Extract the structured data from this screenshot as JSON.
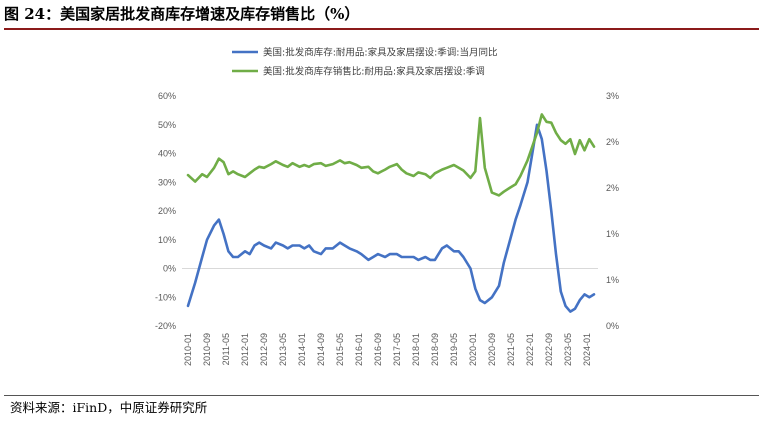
{
  "title": "图 24：美国家居批发商库存增速及库存销售比（%）",
  "source": "资料来源：iFinD，中原证券研究所",
  "chart_data": {
    "type": "line",
    "title": "图 24：美国家居批发商库存增速及库存销售比（%）",
    "legend_position": "top-center",
    "grid": false,
    "x_tick_labels": [
      "2010-01",
      "2010-09",
      "2011-05",
      "2012-01",
      "2012-09",
      "2013-05",
      "2014-01",
      "2014-09",
      "2015-05",
      "2016-01",
      "2016-09",
      "2017-05",
      "2018-01",
      "2018-09",
      "2019-05",
      "2020-01",
      "2020-09",
      "2021-05",
      "2022-01",
      "2022-09",
      "2023-05",
      "2024-01"
    ],
    "left_axis": {
      "labels": [
        "60%",
        "50%",
        "40%",
        "30%",
        "20%",
        "10%",
        "0%",
        "-10%",
        "-20%"
      ],
      "ylim": [
        -20,
        60
      ]
    },
    "right_axis": {
      "labels": [
        "3%",
        "2%",
        "2%",
        "1%",
        "1%",
        "0%"
      ],
      "ylim": [
        0,
        2.5
      ]
    },
    "series": [
      {
        "name": "美国:批发商库存:耐用品:家具及家居摆设:季调:当月同比",
        "axis": "left",
        "color": "#4472C4",
        "x": [
          "2010-01",
          "2010-04",
          "2010-07",
          "2010-09",
          "2010-12",
          "2011-02",
          "2011-04",
          "2011-06",
          "2011-08",
          "2011-10",
          "2012-01",
          "2012-03",
          "2012-05",
          "2012-07",
          "2012-09",
          "2012-12",
          "2013-02",
          "2013-05",
          "2013-07",
          "2013-09",
          "2013-12",
          "2014-02",
          "2014-04",
          "2014-06",
          "2014-09",
          "2014-11",
          "2015-02",
          "2015-05",
          "2015-07",
          "2015-09",
          "2015-12",
          "2016-02",
          "2016-05",
          "2016-07",
          "2016-09",
          "2016-12",
          "2017-02",
          "2017-05",
          "2017-07",
          "2017-09",
          "2017-12",
          "2018-02",
          "2018-05",
          "2018-07",
          "2018-09",
          "2018-12",
          "2019-02",
          "2019-05",
          "2019-07",
          "2019-09",
          "2019-12",
          "2020-02",
          "2020-04",
          "2020-06",
          "2020-09",
          "2020-12",
          "2021-02",
          "2021-05",
          "2021-07",
          "2021-09",
          "2021-12",
          "2022-02",
          "2022-04",
          "2022-06",
          "2022-08",
          "2022-10",
          "2022-12",
          "2023-02",
          "2023-04",
          "2023-06",
          "2023-08",
          "2023-10",
          "2023-12",
          "2024-02",
          "2024-04"
        ],
        "values": [
          -13,
          -5,
          4,
          10,
          15,
          17,
          12,
          6,
          4,
          4,
          6,
          5,
          8,
          9,
          8,
          7,
          9,
          8,
          7,
          8,
          8,
          7,
          8,
          6,
          5,
          7,
          7,
          9,
          8,
          7,
          6,
          5,
          3,
          4,
          5,
          4,
          5,
          5,
          4,
          4,
          4,
          3,
          4,
          3,
          3,
          7,
          8,
          6,
          6,
          4,
          0,
          -7,
          -11,
          -12,
          -10,
          -6,
          2,
          11,
          17,
          22,
          30,
          40,
          50,
          45,
          34,
          20,
          5,
          -8,
          -13,
          -15,
          -14,
          -11,
          -9,
          -10,
          -9
        ]
      },
      {
        "name": "美国:批发商库存销售比:耐用品:家具及家居摆设:季调",
        "axis": "right",
        "color": "#70AD47",
        "x": [
          "2010-01",
          "2010-04",
          "2010-07",
          "2010-09",
          "2010-12",
          "2011-02",
          "2011-04",
          "2011-06",
          "2011-08",
          "2011-10",
          "2012-01",
          "2012-03",
          "2012-05",
          "2012-07",
          "2012-09",
          "2012-12",
          "2013-02",
          "2013-05",
          "2013-07",
          "2013-09",
          "2013-12",
          "2014-02",
          "2014-04",
          "2014-06",
          "2014-09",
          "2014-11",
          "2015-02",
          "2015-05",
          "2015-07",
          "2015-09",
          "2015-12",
          "2016-02",
          "2016-05",
          "2016-07",
          "2016-09",
          "2016-12",
          "2017-02",
          "2017-05",
          "2017-07",
          "2017-09",
          "2017-12",
          "2018-02",
          "2018-05",
          "2018-07",
          "2018-09",
          "2018-12",
          "2019-02",
          "2019-05",
          "2019-07",
          "2019-09",
          "2019-12",
          "2020-02",
          "2020-04",
          "2020-06",
          "2020-09",
          "2020-12",
          "2021-02",
          "2021-05",
          "2021-07",
          "2021-09",
          "2021-12",
          "2022-02",
          "2022-04",
          "2022-06",
          "2022-08",
          "2022-10",
          "2022-12",
          "2023-02",
          "2023-04",
          "2023-06",
          "2023-08",
          "2023-10",
          "2023-12",
          "2024-02",
          "2024-04"
        ],
        "values": [
          1.64,
          1.57,
          1.65,
          1.62,
          1.72,
          1.82,
          1.78,
          1.65,
          1.68,
          1.65,
          1.62,
          1.66,
          1.7,
          1.73,
          1.72,
          1.76,
          1.79,
          1.75,
          1.73,
          1.77,
          1.73,
          1.75,
          1.73,
          1.76,
          1.77,
          1.74,
          1.76,
          1.8,
          1.77,
          1.78,
          1.75,
          1.72,
          1.73,
          1.68,
          1.66,
          1.7,
          1.73,
          1.76,
          1.7,
          1.66,
          1.63,
          1.67,
          1.65,
          1.61,
          1.66,
          1.7,
          1.72,
          1.75,
          1.72,
          1.69,
          1.61,
          1.68,
          2.26,
          1.72,
          1.45,
          1.42,
          1.46,
          1.51,
          1.54,
          1.63,
          1.8,
          1.95,
          2.1,
          2.3,
          2.22,
          2.21,
          2.1,
          2.02,
          1.98,
          2.03,
          1.87,
          2.02,
          1.91,
          2.03,
          1.95
        ]
      }
    ]
  }
}
